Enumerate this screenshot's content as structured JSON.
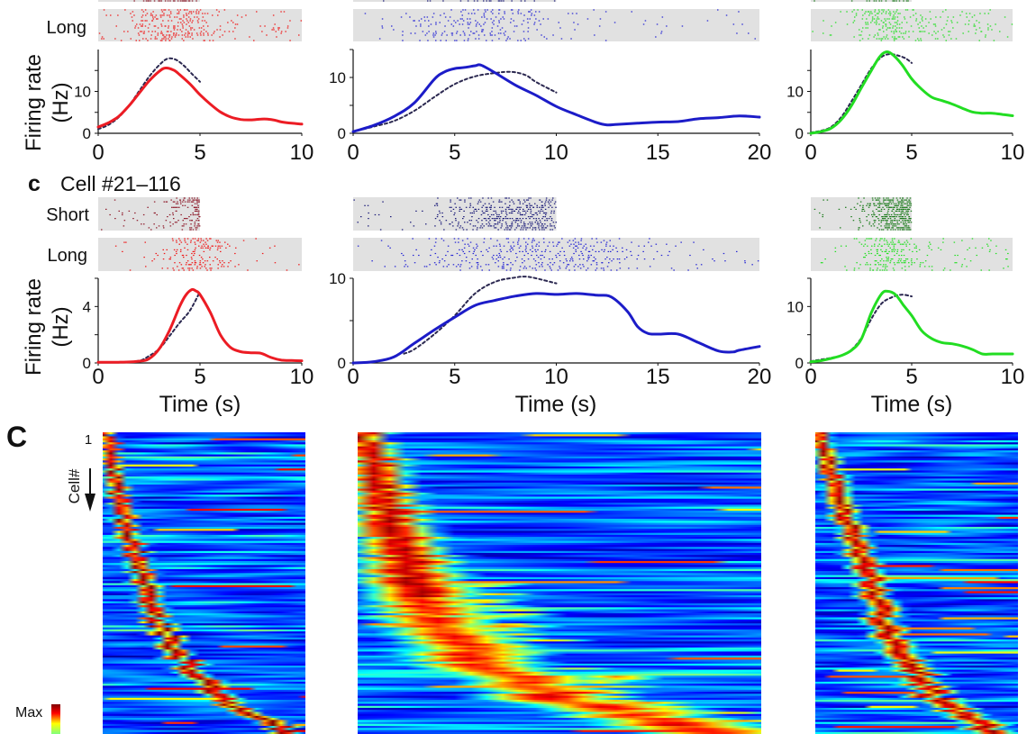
{
  "figure": {
    "section_label_lower": "c",
    "cell_id_title": "Cell #21–116",
    "heatmap_panel_label": "C",
    "condition_short": "Short",
    "condition_long": "Long",
    "ylabel_line1": "Firing rate",
    "ylabel_line2": "(Hz)",
    "xlabel": "Time (s)",
    "heatmap_first_cell_tick": "1",
    "heatmap_row_label": "Cell#",
    "colorbar_label": "Max"
  },
  "colors": {
    "axis": "#111111",
    "raster_background": "#e1e1e1",
    "dashed_line": "#2b2850",
    "red": "#ec1c24",
    "blue": "#1c1cc8",
    "green": "#22dd22",
    "colorbar": [
      "#800000",
      "#ff0000",
      "#ffff00",
      "#7fff7f"
    ]
  },
  "chart_data": [
    {
      "id": "upper-left",
      "type": "line",
      "section": "upper",
      "theme": "red",
      "xlim": [
        0,
        10
      ],
      "ylim": [
        0,
        20
      ],
      "xticks": [
        0,
        5,
        10
      ],
      "yticks": [
        0,
        10
      ],
      "yticks_minor": [
        5,
        15
      ],
      "ylabel": "Firing rate (Hz)",
      "xlabel": "",
      "series": [
        {
          "name": "Long trials",
          "style": "solid",
          "color": "#ec1c24",
          "x": [
            0,
            0.5,
            1,
            1.5,
            2,
            2.5,
            3,
            3.3,
            3.7,
            4,
            4.5,
            5,
            5.5,
            6,
            6.5,
            7,
            7.5,
            8,
            8.3,
            8.7,
            9,
            9.5,
            10
          ],
          "y": [
            1.5,
            2.5,
            4,
            6.5,
            9.5,
            12.5,
            14.8,
            15.6,
            15.1,
            14,
            11.8,
            9.2,
            7,
            5.1,
            3.9,
            3.3,
            3.2,
            3.4,
            3.4,
            3.1,
            2.7,
            2.4,
            2.2
          ]
        },
        {
          "name": "Short trials",
          "style": "dashed",
          "color": "#2b2850",
          "x": [
            0,
            0.5,
            1,
            1.5,
            2,
            2.5,
            3,
            3.4,
            3.8,
            4.2,
            4.6,
            5
          ],
          "y": [
            1,
            2,
            3.8,
            6.5,
            10,
            13.5,
            16.3,
            17.8,
            17.6,
            16.2,
            14.2,
            12.3
          ]
        }
      ],
      "raster": {
        "long_label": "Long",
        "short_label": "",
        "long_xlim": [
          0,
          10
        ],
        "short_xlim": [
          0,
          5
        ],
        "long_color": "#f01818",
        "short_color": "#8e1a2a"
      }
    },
    {
      "id": "upper-middle",
      "type": "line",
      "section": "upper",
      "theme": "blue",
      "xlim": [
        0,
        20
      ],
      "ylim": [
        0,
        15
      ],
      "xticks": [
        0,
        5,
        10,
        15,
        20
      ],
      "yticks": [
        0,
        10
      ],
      "yticks_minor": [
        5,
        15
      ],
      "ylabel": "",
      "xlabel": "",
      "series": [
        {
          "name": "Long trials",
          "style": "solid",
          "color": "#1c1cc8",
          "x": [
            0,
            1,
            2,
            3,
            4,
            4.5,
            5,
            5.5,
            6,
            6.3,
            7,
            8,
            9,
            10,
            11,
            12,
            12.5,
            13,
            14,
            15,
            16,
            17,
            18,
            19,
            20
          ],
          "y": [
            0.3,
            1.4,
            3,
            5.4,
            9.7,
            11,
            11.6,
            11.8,
            12.1,
            12.2,
            10.8,
            8.6,
            6.8,
            4.8,
            3.3,
            1.9,
            1.5,
            1.6,
            1.8,
            2,
            2.1,
            2.6,
            2.8,
            3.1,
            2.9
          ]
        },
        {
          "name": "Short trials",
          "style": "dashed",
          "color": "#2b2850",
          "x": [
            0,
            1,
            2,
            3,
            4,
            5,
            6,
            7,
            7.8,
            8.5,
            9,
            10
          ],
          "y": [
            0.3,
            1.2,
            2.2,
            4,
            6.5,
            8.8,
            10.2,
            10.8,
            11,
            10.4,
            9.2,
            7.3
          ]
        }
      ],
      "raster": {
        "long_label": "",
        "short_label": "",
        "long_xlim": [
          0,
          20
        ],
        "short_xlim": [
          0,
          10
        ],
        "long_color": "#2424d4",
        "short_color": "#1a1a78"
      }
    },
    {
      "id": "upper-right",
      "type": "line",
      "section": "upper",
      "theme": "green",
      "xlim": [
        0,
        10
      ],
      "ylim": [
        0,
        20
      ],
      "xticks": [
        0,
        5,
        10
      ],
      "yticks": [
        0,
        10
      ],
      "yticks_minor": [
        5,
        15
      ],
      "ylabel": "",
      "xlabel": "",
      "series": [
        {
          "name": "Long trials",
          "style": "solid",
          "color": "#22dd22",
          "x": [
            0,
            0.5,
            1,
            1.5,
            2,
            2.5,
            3,
            3.4,
            3.7,
            4,
            4.5,
            5,
            5.5,
            6,
            6.5,
            7,
            7.5,
            8,
            8.5,
            9,
            9.5,
            10
          ],
          "y": [
            0,
            0.4,
            1.2,
            3.2,
            6.5,
            10.8,
            15,
            18.2,
            19.4,
            19,
            16.5,
            13,
            10.5,
            8.6,
            7.8,
            7,
            6,
            5.1,
            4.8,
            4.8,
            4.5,
            4.2
          ]
        },
        {
          "name": "Short trials",
          "style": "dashed",
          "color": "#2b2850",
          "x": [
            0,
            0.5,
            1,
            1.5,
            2,
            2.5,
            3,
            3.5,
            3.9,
            4.3,
            4.7,
            5
          ],
          "y": [
            0.2,
            0.6,
            1.5,
            3.8,
            7.5,
            11.5,
            15.5,
            18.2,
            18.9,
            18.6,
            17.9,
            16.8
          ]
        }
      ],
      "raster": {
        "long_label": "",
        "short_label": "",
        "long_xlim": [
          0,
          10
        ],
        "short_xlim": [
          0,
          5
        ],
        "long_color": "#22e022",
        "short_color": "#1a7a1a"
      }
    },
    {
      "id": "lower-left",
      "type": "line",
      "section": "lower",
      "theme": "red",
      "xlim": [
        0,
        10
      ],
      "ylim": [
        0,
        6
      ],
      "xticks": [
        0,
        5,
        10
      ],
      "yticks": [
        0,
        4
      ],
      "yticks_minor": [
        2,
        6
      ],
      "ylabel": "Firing rate (Hz)",
      "xlabel": "Time (s)",
      "series": [
        {
          "name": "Long trials",
          "style": "solid",
          "color": "#ec1c24",
          "x": [
            0,
            1,
            2,
            2.5,
            3,
            3.5,
            4,
            4.3,
            4.6,
            4.8,
            5,
            5.5,
            6,
            6.5,
            7,
            7.5,
            8,
            8.5,
            9,
            9.5,
            10
          ],
          "y": [
            0.05,
            0.05,
            0.12,
            0.3,
            1.0,
            2.3,
            4.0,
            4.8,
            5.2,
            5.1,
            4.85,
            3.6,
            2.0,
            1.1,
            0.8,
            0.72,
            0.68,
            0.38,
            0.2,
            0.17,
            0.15
          ]
        },
        {
          "name": "Short trials",
          "style": "dashed",
          "color": "#2b2850",
          "x": [
            0,
            1,
            2,
            2.5,
            3,
            3.5,
            4,
            4.5,
            5
          ],
          "y": [
            0.05,
            0.05,
            0.15,
            0.5,
            1.0,
            1.9,
            2.85,
            3.7,
            5.05
          ]
        }
      ],
      "raster": {
        "long_label": "Long",
        "short_label": "Short",
        "long_xlim": [
          0,
          10
        ],
        "short_xlim": [
          0,
          5
        ],
        "long_color": "#f01818",
        "short_color": "#8e1a2a"
      }
    },
    {
      "id": "lower-middle",
      "type": "line",
      "section": "lower",
      "theme": "blue",
      "xlim": [
        0,
        20
      ],
      "ylim": [
        0,
        10
      ],
      "xticks": [
        0,
        5,
        10,
        15,
        20
      ],
      "yticks": [
        0,
        10
      ],
      "yticks_minor": [
        5
      ],
      "ylabel": "",
      "xlabel": "Time (s)",
      "series": [
        {
          "name": "Long trials",
          "style": "solid",
          "color": "#1c1cc8",
          "x": [
            0,
            1,
            2,
            3,
            4,
            5,
            6,
            7,
            8,
            9,
            10,
            11,
            12,
            12.7,
            13.5,
            14,
            14.5,
            15,
            16,
            17,
            18,
            18.7,
            19,
            20
          ],
          "y": [
            0,
            0.15,
            0.7,
            2.3,
            3.9,
            5.4,
            6.8,
            7.4,
            7.9,
            8.2,
            8.1,
            8.2,
            8.0,
            7.8,
            6.1,
            4.3,
            3.5,
            3.4,
            3.4,
            2.4,
            1.4,
            1.3,
            1.5,
            1.95
          ]
        },
        {
          "name": "Short trials",
          "style": "dashed",
          "color": "#2b2850",
          "x": [
            2.5,
            3,
            4,
            5,
            6,
            7,
            8,
            8.5,
            9,
            10
          ],
          "y": [
            1.1,
            1.6,
            3.4,
            5.6,
            8.2,
            9.6,
            10.1,
            10.2,
            10,
            9.4
          ]
        }
      ],
      "raster": {
        "long_label": "",
        "short_label": "",
        "long_xlim": [
          0,
          20
        ],
        "short_xlim": [
          0,
          10
        ],
        "long_color": "#2424d4",
        "short_color": "#1a1a78"
      }
    },
    {
      "id": "lower-right",
      "type": "line",
      "section": "lower",
      "theme": "green",
      "xlim": [
        0,
        10
      ],
      "ylim": [
        0,
        15
      ],
      "xticks": [
        0,
        5,
        10
      ],
      "yticks": [
        0,
        10
      ],
      "yticks_minor": [
        5,
        15
      ],
      "ylabel": "",
      "xlabel": "Time (s)",
      "series": [
        {
          "name": "Long trials",
          "style": "solid",
          "color": "#22dd22",
          "x": [
            0,
            0.5,
            1,
            1.5,
            2,
            2.5,
            3,
            3.5,
            3.8,
            4.2,
            4.6,
            5,
            5.5,
            6,
            6.5,
            7,
            7.5,
            8,
            8.5,
            9,
            10
          ],
          "y": [
            0.2,
            0.4,
            0.8,
            1.3,
            2.2,
            4.2,
            8.9,
            12.2,
            12.7,
            12.1,
            10.2,
            8.4,
            5.7,
            4.3,
            3.6,
            3.4,
            3.0,
            2.4,
            1.6,
            1.6,
            1.6
          ]
        },
        {
          "name": "Short trials",
          "style": "dashed",
          "color": "#2b2850",
          "x": [
            0,
            1,
            1.5,
            2,
            2.5,
            3,
            3.5,
            4,
            4.5,
            5
          ],
          "y": [
            0.3,
            0.9,
            1.3,
            2.3,
            4.4,
            7.8,
            10.5,
            11.6,
            12.1,
            11.8
          ]
        }
      ],
      "raster": {
        "long_label": "",
        "short_label": "",
        "long_xlim": [
          0,
          10
        ],
        "short_xlim": [
          0,
          5
        ],
        "long_color": "#22e022",
        "short_color": "#1a7a1a"
      }
    },
    {
      "id": "heatmap-left",
      "type": "heatmap",
      "colormap": "jet",
      "colorbar_label": "Max",
      "row_label": "Cell#",
      "first_row_tick": "1",
      "peak_sequence": [
        {
          "cell_rank_pct": 0,
          "peak_time_pct": 2
        },
        {
          "cell_rank_pct": 24,
          "peak_time_pct": 9
        },
        {
          "cell_rank_pct": 48,
          "peak_time_pct": 19
        },
        {
          "cell_rank_pct": 66,
          "peak_time_pct": 29
        },
        {
          "cell_rank_pct": 78,
          "peak_time_pct": 41
        },
        {
          "cell_rank_pct": 90,
          "peak_time_pct": 63
        },
        {
          "cell_rank_pct": 100,
          "peak_time_pct": 92
        }
      ]
    },
    {
      "id": "heatmap-middle",
      "type": "heatmap",
      "colormap": "jet",
      "peak_sequence": [
        {
          "cell_rank_pct": 0,
          "peak_time_pct": 1
        },
        {
          "cell_rank_pct": 24,
          "peak_time_pct": 7
        },
        {
          "cell_rank_pct": 48,
          "peak_time_pct": 13
        },
        {
          "cell_rank_pct": 66,
          "peak_time_pct": 21
        },
        {
          "cell_rank_pct": 78,
          "peak_time_pct": 32
        },
        {
          "cell_rank_pct": 90,
          "peak_time_pct": 54
        },
        {
          "cell_rank_pct": 100,
          "peak_time_pct": 88
        }
      ]
    },
    {
      "id": "heatmap-right",
      "type": "heatmap",
      "colormap": "jet",
      "peak_sequence": [
        {
          "cell_rank_pct": 0,
          "peak_time_pct": 2
        },
        {
          "cell_rank_pct": 24,
          "peak_time_pct": 13
        },
        {
          "cell_rank_pct": 48,
          "peak_time_pct": 27
        },
        {
          "cell_rank_pct": 66,
          "peak_time_pct": 36
        },
        {
          "cell_rank_pct": 78,
          "peak_time_pct": 47
        },
        {
          "cell_rank_pct": 90,
          "peak_time_pct": 62
        },
        {
          "cell_rank_pct": 100,
          "peak_time_pct": 88
        }
      ]
    }
  ]
}
